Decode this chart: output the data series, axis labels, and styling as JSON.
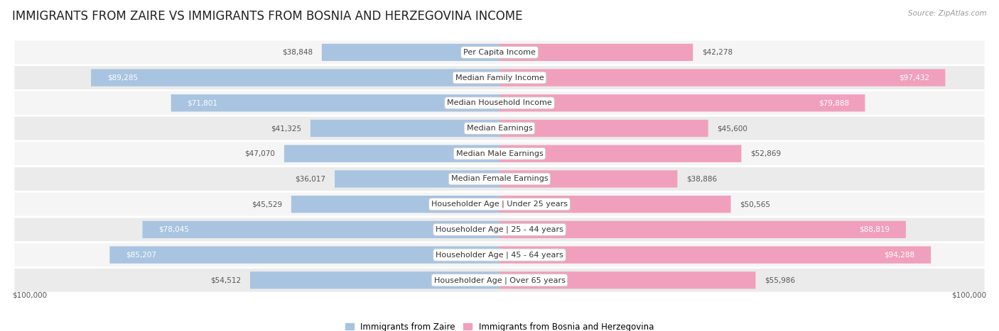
{
  "title": "IMMIGRANTS FROM ZAIRE VS IMMIGRANTS FROM BOSNIA AND HERZEGOVINA INCOME",
  "source": "Source: ZipAtlas.com",
  "categories": [
    "Per Capita Income",
    "Median Family Income",
    "Median Household Income",
    "Median Earnings",
    "Median Male Earnings",
    "Median Female Earnings",
    "Householder Age | Under 25 years",
    "Householder Age | 25 - 44 years",
    "Householder Age | 45 - 64 years",
    "Householder Age | Over 65 years"
  ],
  "zaire_values": [
    38848,
    89285,
    71801,
    41325,
    47070,
    36017,
    45529,
    78045,
    85207,
    54512
  ],
  "bosnia_values": [
    42278,
    97432,
    79888,
    45600,
    52869,
    38886,
    50565,
    88819,
    94288,
    55986
  ],
  "zaire_color": "#a8c4e0",
  "bosnia_color": "#f0a0bc",
  "zaire_color_strong": "#7badd4",
  "bosnia_color_strong": "#ee6090",
  "max_value": 100000,
  "title_fontsize": 12,
  "label_fontsize": 8,
  "value_fontsize": 7.5,
  "legend_label_zaire": "Immigrants from Zaire",
  "legend_label_bosnia": "Immigrants from Bosnia and Herzegovina",
  "xlabel_left": "$100,000",
  "xlabel_right": "$100,000",
  "inside_threshold": 62000
}
